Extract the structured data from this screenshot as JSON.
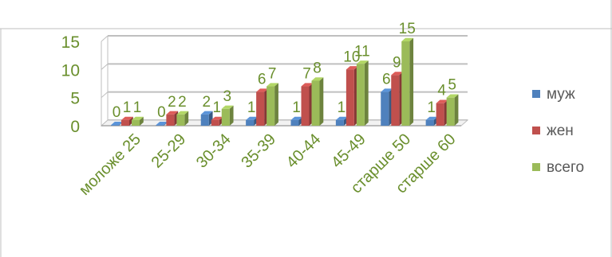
{
  "chart_data": {
    "type": "bar",
    "categories": [
      "моложе 25",
      "25-29",
      "30-34",
      "35-39",
      "40-44",
      "45-49",
      "старше 50",
      "старше 60"
    ],
    "series": [
      {
        "name": "муж",
        "values": [
          0,
          0,
          2,
          1,
          1,
          1,
          6,
          1
        ],
        "color": "#4f81bd"
      },
      {
        "name": "жен",
        "values": [
          1,
          2,
          1,
          6,
          7,
          10,
          9,
          4
        ],
        "color": "#c0504d"
      },
      {
        "name": "всего",
        "values": [
          1,
          2,
          3,
          7,
          8,
          11,
          15,
          5
        ],
        "color": "#9bbb59"
      }
    ],
    "y_ticks": [
      "0",
      "5",
      "10",
      "15"
    ],
    "ylim": [
      0,
      15
    ],
    "gridlines": true,
    "legend_position": "right",
    "three_d": true
  }
}
